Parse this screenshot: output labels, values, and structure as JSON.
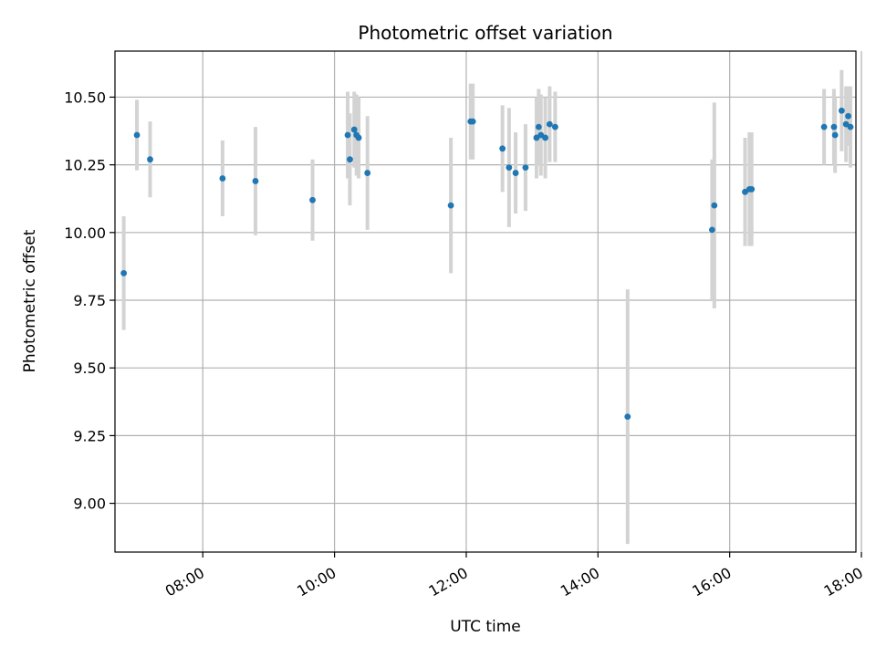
{
  "chart_data": {
    "type": "scatter",
    "title": "Photometric offset variation",
    "xlabel": "UTC time",
    "ylabel": "Photometric offset",
    "x_unit": "time of day (HH:MM)",
    "xlim": [
      "06:40",
      "17:55"
    ],
    "ylim": [
      8.82,
      10.67
    ],
    "grid": true,
    "x_ticks": [
      "08:00",
      "10:00",
      "12:00",
      "14:00",
      "16:00",
      "18:00"
    ],
    "y_ticks": [
      "9.00",
      "9.25",
      "9.50",
      "9.75",
      "10.00",
      "10.25",
      "10.50"
    ],
    "marker_color": "#1f77b4",
    "errorbar_color": "#d3d3d3",
    "points": [
      {
        "x": "06:48",
        "y": 9.85,
        "err": 0.21
      },
      {
        "x": "07:00",
        "y": 10.36,
        "err": 0.13
      },
      {
        "x": "07:12",
        "y": 10.27,
        "err": 0.14
      },
      {
        "x": "08:18",
        "y": 10.2,
        "err": 0.14
      },
      {
        "x": "08:48",
        "y": 10.19,
        "err": 0.2
      },
      {
        "x": "09:40",
        "y": 10.12,
        "err": 0.15
      },
      {
        "x": "10:12",
        "y": 10.36,
        "err": 0.16
      },
      {
        "x": "10:14",
        "y": 10.27,
        "err": 0.17
      },
      {
        "x": "10:18",
        "y": 10.38,
        "err": 0.14
      },
      {
        "x": "10:20",
        "y": 10.36,
        "err": 0.15
      },
      {
        "x": "10:22",
        "y": 10.35,
        "err": 0.15
      },
      {
        "x": "10:30",
        "y": 10.22,
        "err": 0.21
      },
      {
        "x": "11:46",
        "y": 10.1,
        "err": 0.25
      },
      {
        "x": "12:04",
        "y": 10.41,
        "err": 0.14
      },
      {
        "x": "12:06",
        "y": 10.41,
        "err": 0.14
      },
      {
        "x": "12:33",
        "y": 10.31,
        "err": 0.16
      },
      {
        "x": "12:39",
        "y": 10.24,
        "err": 0.22
      },
      {
        "x": "12:45",
        "y": 10.22,
        "err": 0.15
      },
      {
        "x": "12:54",
        "y": 10.24,
        "err": 0.16
      },
      {
        "x": "13:04",
        "y": 10.35,
        "err": 0.15
      },
      {
        "x": "13:06",
        "y": 10.39,
        "err": 0.14
      },
      {
        "x": "13:08",
        "y": 10.36,
        "err": 0.15
      },
      {
        "x": "13:12",
        "y": 10.35,
        "err": 0.15
      },
      {
        "x": "13:16",
        "y": 10.4,
        "err": 0.14
      },
      {
        "x": "13:21",
        "y": 10.39,
        "err": 0.13
      },
      {
        "x": "14:27",
        "y": 9.32,
        "err": 0.47
      },
      {
        "x": "15:44",
        "y": 10.01,
        "err": 0.26
      },
      {
        "x": "15:46",
        "y": 10.1,
        "err": 0.38
      },
      {
        "x": "16:14",
        "y": 10.15,
        "err": 0.2
      },
      {
        "x": "16:18",
        "y": 10.16,
        "err": 0.21
      },
      {
        "x": "16:20",
        "y": 10.16,
        "err": 0.21
      },
      {
        "x": "17:26",
        "y": 10.39,
        "err": 0.14
      },
      {
        "x": "17:35",
        "y": 10.39,
        "err": 0.14
      },
      {
        "x": "17:36",
        "y": 10.36,
        "err": 0.14
      },
      {
        "x": "17:42",
        "y": 10.45,
        "err": 0.15
      },
      {
        "x": "17:46",
        "y": 10.4,
        "err": 0.14
      },
      {
        "x": "17:48",
        "y": 10.43,
        "err": 0.11
      },
      {
        "x": "17:50",
        "y": 10.39,
        "err": 0.15
      }
    ]
  }
}
